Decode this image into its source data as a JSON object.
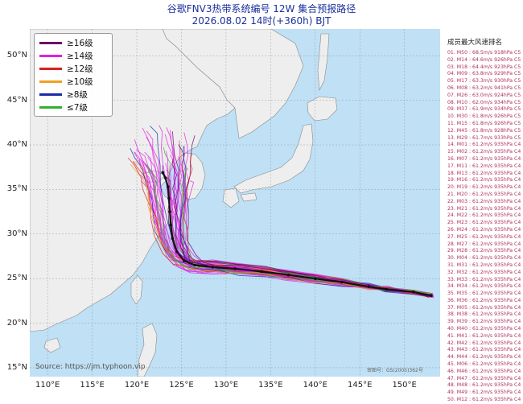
{
  "header": {
    "title": "谷歌FNV3热带系统编号 12W 集合预报路径",
    "subtitle": "2026.08.02 14时(+360h) BJT"
  },
  "legend": [
    {
      "label": "≥16级",
      "color": "#6a006a"
    },
    {
      "label": "≥14级",
      "color": "#e020e0"
    },
    {
      "label": "≥12级",
      "color": "#d82020"
    },
    {
      "label": "≥10级",
      "color": "#f0a020"
    },
    {
      "label": "≥8级",
      "color": "#1a2aa8"
    },
    {
      "label": "≤7级",
      "color": "#30b030"
    }
  ],
  "axes": {
    "lat_labels": [
      "50°N",
      "45°N",
      "40°N",
      "35°N",
      "30°N",
      "25°N",
      "20°N",
      "15°N"
    ],
    "lon_labels": [
      "110°E",
      "115°E",
      "120°E",
      "125°E",
      "130°E",
      "135°E",
      "140°E",
      "145°E",
      "150°E"
    ]
  },
  "ranking": {
    "title": "成员最大风速排名",
    "rows": [
      "01. M50 : 68.5m/s 918hPa C5",
      "02. M14 : 64.6m/s 926hPa C5",
      "03. M18 : 64.4m/s 923hPa C5",
      "04. M09 : 63.8m/s 929hPa C5",
      "05. M17 : 63.3m/s 930hPa C5",
      "06. M08 : 63.2m/s 941hPa C5",
      "07. M26 : 63.0m/s 924hPa C5",
      "08. M10 : 62.0m/s 934hPa C5",
      "09. M37 : 61.9m/s 934hPa C5",
      "10. M30 : 61.8m/s 926hPa C5",
      "11. M15 : 61.8m/s 926hPa C5",
      "12. M45 : 61.8m/s 928hPa C5",
      "13. M29 : 61.7m/s 933hPa C5",
      "14. M01 : 61.2m/s 935hPa C4",
      "15. M02 : 61.2m/s 935hPa C4",
      "16. M07 : 61.2m/s 935hPa C4",
      "17. M11 : 61.2m/s 935hPa C4",
      "18. M13 : 61.2m/s 935hPa C4",
      "19. M16 : 61.2m/s 935hPa C4",
      "20. M19 : 61.2m/s 935hPa C4",
      "21. M20 : 61.2m/s 935hPa C4",
      "22. M03 : 61.2m/s 935hPa C4",
      "23. M21 : 61.2m/s 935hPa C4",
      "24. M22 : 61.2m/s 935hPa C4",
      "25. M23 : 61.2m/s 935hPa C4",
      "26. M24 : 61.2m/s 935hPa C4",
      "27. M25 : 61.2m/s 935hPa C4",
      "28. M27 : 61.2m/s 935hPa C4",
      "29. M28 : 61.2m/s 935hPa C4",
      "30. M04 : 61.2m/s 935hPa C4",
      "31. M31 : 61.2m/s 935hPa C4",
      "32. M32 : 61.2m/s 935hPa C4",
      "33. M33 : 61.2m/s 935hPa C4",
      "34. M34 : 61.2m/s 935hPa C4",
      "35. M35 : 61.2m/s 935hPa C4",
      "36. M36 : 61.2m/s 935hPa C4",
      "37. M05 : 61.2m/s 935hPa C4",
      "38. M38 : 61.2m/s 935hPa C4",
      "39. M39 : 61.2m/s 935hPa C4",
      "40. M40 : 61.2m/s 935hPa C4",
      "41. M41 : 61.2m/s 935hPa C4",
      "42. M42 : 61.2m/s 935hPa C4",
      "43. M43 : 61.2m/s 935hPa C4",
      "44. M44 : 61.2m/s 935hPa C4",
      "45. M06 : 61.2m/s 935hPa C4",
      "46. M46 : 61.2m/s 935hPa C4",
      "47. M47 : 61.2m/s 935hPa C4",
      "48. M48 : 61.2m/s 935hPa C4",
      "49. M49 : 61.2m/s 935hPa C4",
      "50. M12 : 61.2m/s 935hPa C4"
    ]
  },
  "watermark": "Source: https://jm.typhoon.vip",
  "copyright": "审图号：GS(2005)362号",
  "colors": {
    "ocean": "#bfe0f5",
    "land": "#eeeeee",
    "border": "#8a8a8a",
    "grid": "#9aa0a6",
    "mean_track": "#111111"
  },
  "chart_data": {
    "type": "map-tracks",
    "extent": {
      "lon": [
        108,
        154
      ],
      "lat": [
        14,
        53
      ]
    },
    "mean_track": [
      [
        153,
        23.1
      ],
      [
        151,
        23.5
      ],
      [
        148,
        23.8
      ],
      [
        146,
        24.1
      ],
      [
        143,
        24.6
      ],
      [
        140,
        25.0
      ],
      [
        137,
        25.4
      ],
      [
        134,
        25.8
      ],
      [
        131,
        26.1
      ],
      [
        128.5,
        26.3
      ],
      [
        126.5,
        26.5
      ],
      [
        125.3,
        27.0
      ],
      [
        124.5,
        28.0
      ],
      [
        124.0,
        29.5
      ],
      [
        123.8,
        31.0
      ],
      [
        123.7,
        32.5
      ],
      [
        123.6,
        34.0
      ],
      [
        123.5,
        35.3
      ],
      [
        123.2,
        36.3
      ],
      [
        122.9,
        36.9
      ]
    ]
  }
}
